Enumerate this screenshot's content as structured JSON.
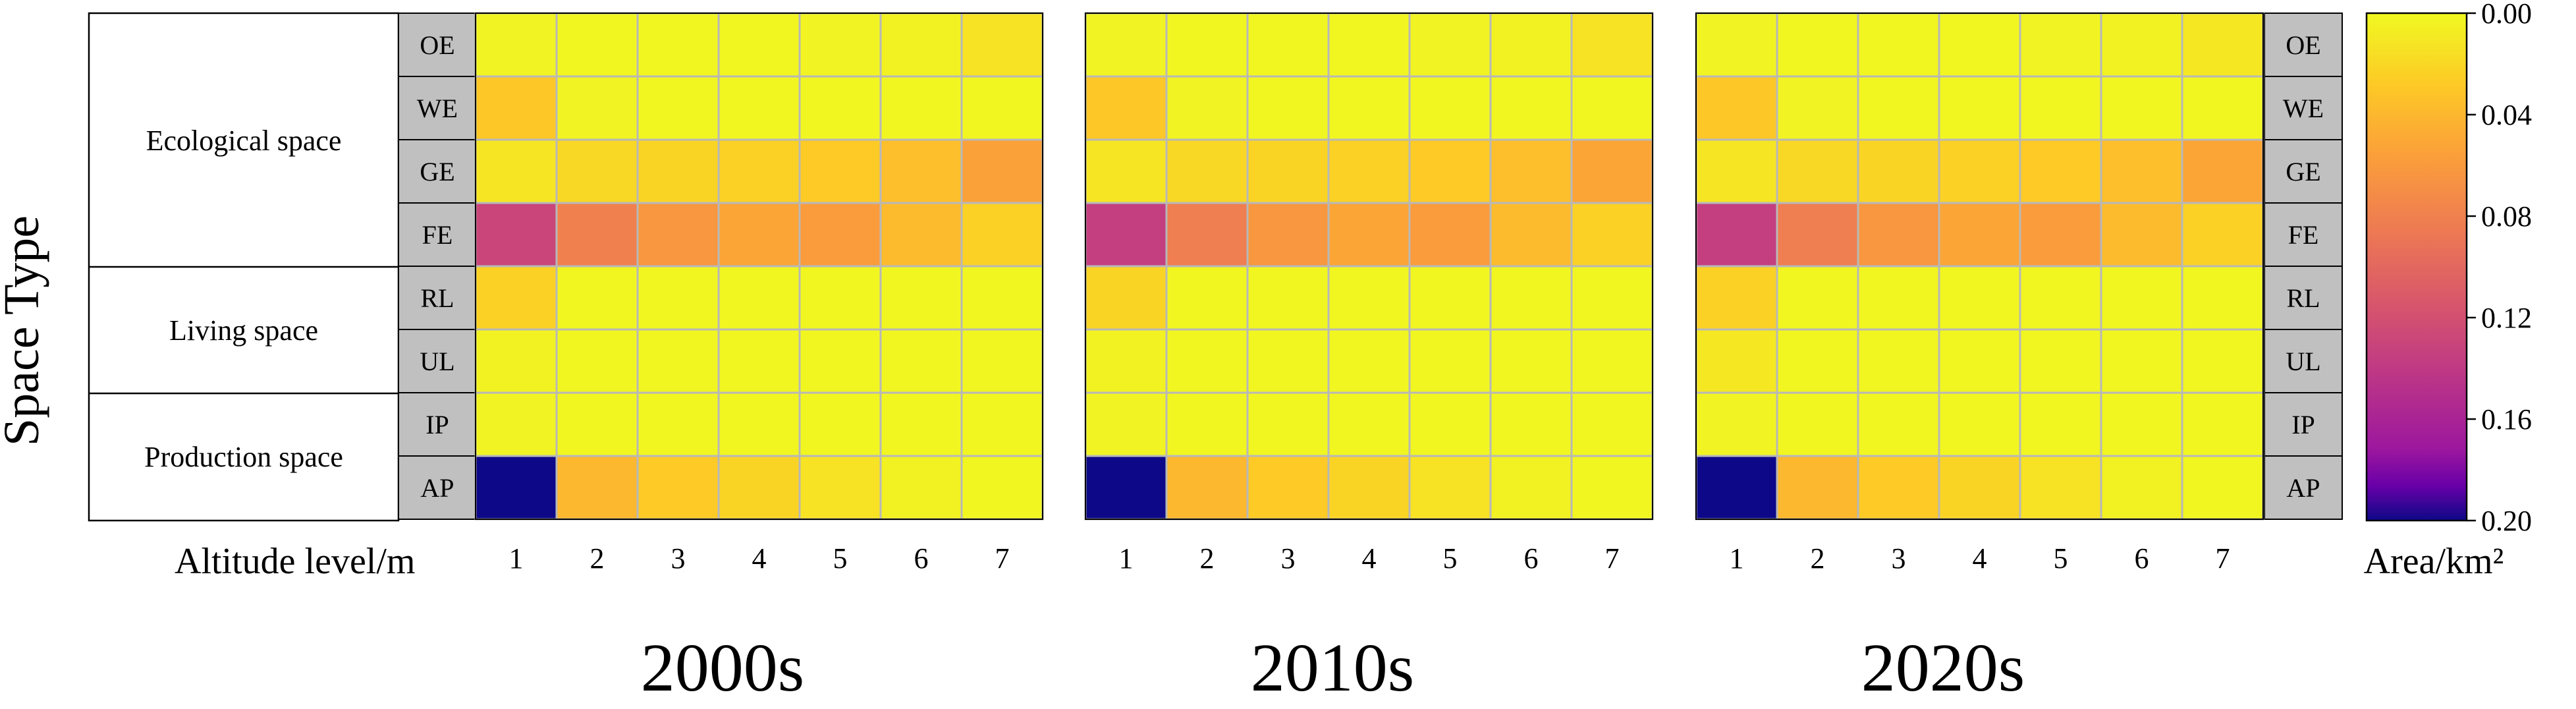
{
  "y_axis_title": "Space Type",
  "x_axis_label": "Altitude level/m",
  "colorbar": {
    "title": "Area/km²",
    "range": [
      0.0,
      0.2
    ],
    "tick_labels": [
      "0.00",
      "0.04",
      "0.08",
      "0.12",
      "0.16",
      "0.20"
    ],
    "tick_values": [
      0.0,
      0.04,
      0.08,
      0.12,
      0.16,
      0.2
    ],
    "colormap": "plasma_r (yellow→orange→magenta→purple→navy)"
  },
  "space_groups": [
    {
      "label": "Ecological space",
      "rows": [
        "OE",
        "WE",
        "GE",
        "FE"
      ]
    },
    {
      "label": "Living space",
      "rows": [
        "RL",
        "UL"
      ]
    },
    {
      "label": "Production space",
      "rows": [
        "IP",
        "AP"
      ]
    }
  ],
  "colors": {
    "row_label_bg": "#c0c0c0",
    "cell_border": "#b8b8b8",
    "low": "#f0f020",
    "high": "#0d0887"
  },
  "chart_data": {
    "type": "heatmap",
    "rows": [
      "OE",
      "WE",
      "GE",
      "FE",
      "RL",
      "UL",
      "IP",
      "AP"
    ],
    "columns": [
      "1",
      "2",
      "3",
      "4",
      "5",
      "6",
      "7"
    ],
    "value_range": [
      0.0,
      0.2
    ],
    "panels": [
      {
        "title": "2000s",
        "values": [
          [
            0.003,
            0.002,
            0.002,
            0.002,
            0.003,
            0.004,
            0.014
          ],
          [
            0.03,
            0.003,
            0.002,
            0.002,
            0.002,
            0.002,
            0.002
          ],
          [
            0.012,
            0.02,
            0.022,
            0.024,
            0.028,
            0.035,
            0.055
          ],
          [
            0.13,
            0.08,
            0.062,
            0.052,
            0.058,
            0.038,
            0.024
          ],
          [
            0.024,
            0.002,
            0.002,
            0.002,
            0.002,
            0.002,
            0.002
          ],
          [
            0.004,
            0.002,
            0.002,
            0.002,
            0.002,
            0.002,
            0.002
          ],
          [
            0.003,
            0.002,
            0.002,
            0.002,
            0.002,
            0.002,
            0.002
          ],
          [
            0.2,
            0.04,
            0.028,
            0.022,
            0.014,
            0.005,
            0.002
          ]
        ]
      },
      {
        "title": "2010s",
        "values": [
          [
            0.003,
            0.002,
            0.002,
            0.002,
            0.003,
            0.004,
            0.014
          ],
          [
            0.03,
            0.003,
            0.002,
            0.002,
            0.002,
            0.002,
            0.002
          ],
          [
            0.012,
            0.02,
            0.022,
            0.024,
            0.028,
            0.035,
            0.052
          ],
          [
            0.135,
            0.082,
            0.062,
            0.052,
            0.058,
            0.038,
            0.024
          ],
          [
            0.022,
            0.002,
            0.002,
            0.002,
            0.002,
            0.002,
            0.002
          ],
          [
            0.004,
            0.002,
            0.002,
            0.002,
            0.002,
            0.002,
            0.002
          ],
          [
            0.003,
            0.002,
            0.002,
            0.002,
            0.002,
            0.002,
            0.002
          ],
          [
            0.2,
            0.04,
            0.028,
            0.022,
            0.014,
            0.005,
            0.002
          ]
        ]
      },
      {
        "title": "2020s",
        "values": [
          [
            0.003,
            0.002,
            0.002,
            0.002,
            0.003,
            0.004,
            0.01
          ],
          [
            0.03,
            0.003,
            0.002,
            0.002,
            0.002,
            0.002,
            0.002
          ],
          [
            0.012,
            0.02,
            0.022,
            0.024,
            0.028,
            0.035,
            0.052
          ],
          [
            0.135,
            0.082,
            0.062,
            0.052,
            0.058,
            0.038,
            0.024
          ],
          [
            0.024,
            0.002,
            0.002,
            0.002,
            0.002,
            0.002,
            0.002
          ],
          [
            0.01,
            0.002,
            0.002,
            0.002,
            0.002,
            0.002,
            0.002
          ],
          [
            0.003,
            0.002,
            0.002,
            0.002,
            0.002,
            0.002,
            0.002
          ],
          [
            0.2,
            0.04,
            0.028,
            0.022,
            0.014,
            0.005,
            0.002
          ]
        ]
      }
    ]
  }
}
